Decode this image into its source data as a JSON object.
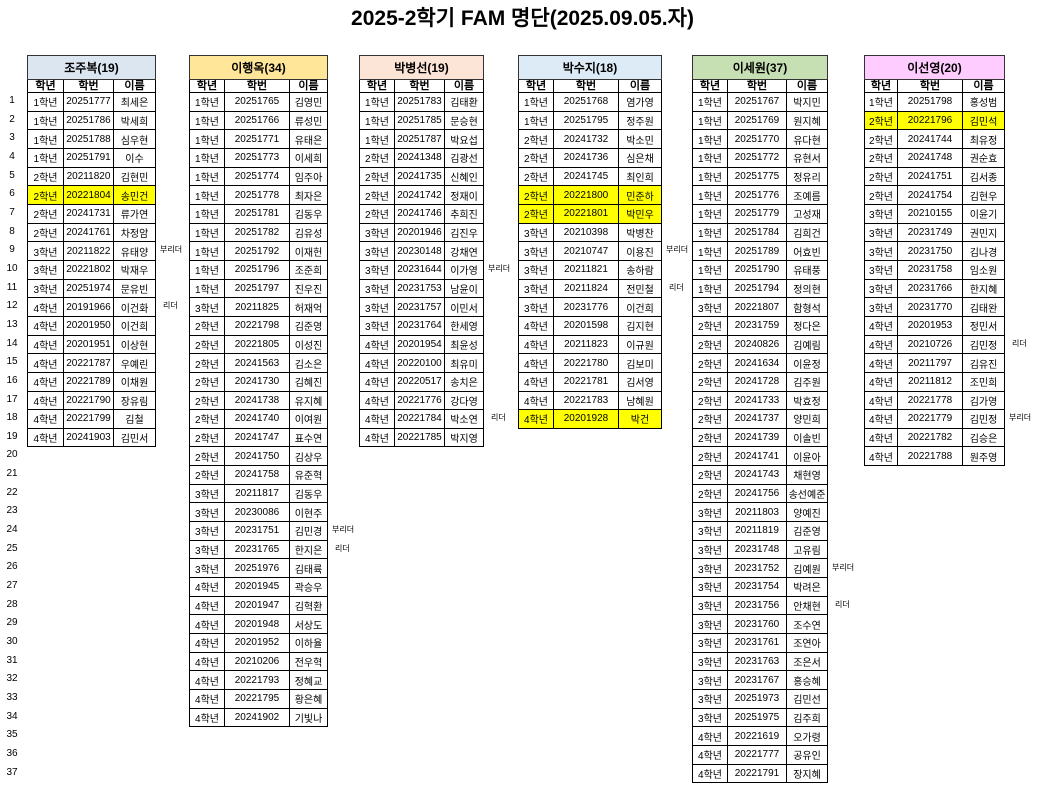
{
  "title": "2025-2학기 FAM 명단(2025.09.05.자)",
  "columns": [
    "학년",
    "학번",
    "이름"
  ],
  "row_numbers": [
    "1",
    "2",
    "3",
    "4",
    "5",
    "6",
    "7",
    "8",
    "9",
    "10",
    "11",
    "12",
    "13",
    "14",
    "15",
    "16",
    "17",
    "18",
    "19",
    "20",
    "21",
    "22",
    "23",
    "24",
    "25",
    "26",
    "27",
    "28",
    "29",
    "30",
    "31",
    "32",
    "33",
    "34",
    "35",
    "36",
    "37"
  ],
  "highlight_color": "#ffff00",
  "groups": [
    {
      "label": "조주복(19)",
      "color": "#dce6f1",
      "members": [
        [
          "1학년",
          "20251777",
          "최세은",
          "",
          false
        ],
        [
          "1학년",
          "20251786",
          "박세희",
          "",
          false
        ],
        [
          "1학년",
          "20251788",
          "심우현",
          "",
          false
        ],
        [
          "1학년",
          "20251791",
          "이수",
          "",
          false
        ],
        [
          "2학년",
          "20211820",
          "김현민",
          "",
          false
        ],
        [
          "2학년",
          "20221804",
          "송민건",
          "",
          true
        ],
        [
          "2학년",
          "20241731",
          "류가연",
          "",
          false
        ],
        [
          "2학년",
          "20241761",
          "차정암",
          "",
          false
        ],
        [
          "3학년",
          "20211822",
          "유태양",
          "부리더",
          false
        ],
        [
          "3학년",
          "20221802",
          "박재우",
          "",
          false
        ],
        [
          "3학년",
          "20251974",
          "문유빈",
          "",
          false
        ],
        [
          "4학년",
          "20191966",
          "이건화",
          "리더",
          false
        ],
        [
          "4학년",
          "20201950",
          "이건희",
          "",
          false
        ],
        [
          "4학년",
          "20201951",
          "이상현",
          "",
          false
        ],
        [
          "4학년",
          "20221787",
          "우예린",
          "",
          false
        ],
        [
          "4학년",
          "20221789",
          "이채원",
          "",
          false
        ],
        [
          "4학년",
          "20221790",
          "장유림",
          "",
          false
        ],
        [
          "4학년",
          "20221799",
          "김철",
          "",
          false
        ],
        [
          "4학년",
          "20241903",
          "김민서",
          "",
          false
        ]
      ]
    },
    {
      "label": "이행옥(34)",
      "color": "#ffe699",
      "members": [
        [
          "1학년",
          "20251765",
          "김영민",
          "",
          false
        ],
        [
          "1학년",
          "20251766",
          "류성민",
          "",
          false
        ],
        [
          "1학년",
          "20251771",
          "유태은",
          "",
          false
        ],
        [
          "1학년",
          "20251773",
          "이세희",
          "",
          false
        ],
        [
          "1학년",
          "20251774",
          "임주아",
          "",
          false
        ],
        [
          "1학년",
          "20251778",
          "최자은",
          "",
          false
        ],
        [
          "1학년",
          "20251781",
          "김동우",
          "",
          false
        ],
        [
          "1학년",
          "20251782",
          "김유성",
          "",
          false
        ],
        [
          "1학년",
          "20251792",
          "이재헌",
          "",
          false
        ],
        [
          "1학년",
          "20251796",
          "조준희",
          "",
          false
        ],
        [
          "1학년",
          "20251797",
          "진우진",
          "",
          false
        ],
        [
          "3학년",
          "20211825",
          "허재억",
          "",
          false
        ],
        [
          "2학년",
          "20221798",
          "김준영",
          "",
          false
        ],
        [
          "2학년",
          "20221805",
          "이성진",
          "",
          false
        ],
        [
          "2학년",
          "20241563",
          "김소은",
          "",
          false
        ],
        [
          "2학년",
          "20241730",
          "김혜진",
          "",
          false
        ],
        [
          "2학년",
          "20241738",
          "유지혜",
          "",
          false
        ],
        [
          "2학년",
          "20241740",
          "이여원",
          "",
          false
        ],
        [
          "2학년",
          "20241747",
          "표수연",
          "",
          false
        ],
        [
          "2학년",
          "20241750",
          "김상우",
          "",
          false
        ],
        [
          "2학년",
          "20241758",
          "유준혁",
          "",
          false
        ],
        [
          "3학년",
          "20211817",
          "김동우",
          "",
          false
        ],
        [
          "3학년",
          "20230086",
          "이현주",
          "",
          false
        ],
        [
          "3학년",
          "20231751",
          "김민경",
          "부리더",
          false
        ],
        [
          "3학년",
          "20231765",
          "한지은",
          "리더",
          false
        ],
        [
          "3학년",
          "20251976",
          "김태륙",
          "",
          false
        ],
        [
          "4학년",
          "20201945",
          "곽승우",
          "",
          false
        ],
        [
          "4학년",
          "20201947",
          "김혁환",
          "",
          false
        ],
        [
          "4학년",
          "20201948",
          "서상도",
          "",
          false
        ],
        [
          "4학년",
          "20201952",
          "이하율",
          "",
          false
        ],
        [
          "4학년",
          "20210206",
          "전우혁",
          "",
          false
        ],
        [
          "4학년",
          "20221793",
          "정혜교",
          "",
          false
        ],
        [
          "4학년",
          "20221795",
          "황은혜",
          "",
          false
        ],
        [
          "4학년",
          "20241902",
          "기빛나",
          "",
          false
        ]
      ]
    },
    {
      "label": "박병선(19)",
      "color": "#fce4d6",
      "members": [
        [
          "1학년",
          "20251783",
          "김태환",
          "",
          false
        ],
        [
          "1학년",
          "20251785",
          "문승현",
          "",
          false
        ],
        [
          "1학년",
          "20251787",
          "박요섭",
          "",
          false
        ],
        [
          "2학년",
          "20241348",
          "김광선",
          "",
          false
        ],
        [
          "2학년",
          "20241735",
          "신혜인",
          "",
          false
        ],
        [
          "2학년",
          "20241742",
          "정재이",
          "",
          false
        ],
        [
          "2학년",
          "20241746",
          "추희진",
          "",
          false
        ],
        [
          "3학년",
          "20201946",
          "김진우",
          "",
          false
        ],
        [
          "3학년",
          "20230148",
          "강채연",
          "",
          false
        ],
        [
          "3학년",
          "20231644",
          "이가영",
          "부리더",
          false
        ],
        [
          "3학년",
          "20231753",
          "남윤이",
          "",
          false
        ],
        [
          "3학년",
          "20231757",
          "이민서",
          "",
          false
        ],
        [
          "3학년",
          "20231764",
          "한세영",
          "",
          false
        ],
        [
          "4학년",
          "20201954",
          "최윤성",
          "",
          false
        ],
        [
          "4학년",
          "20220100",
          "최유미",
          "",
          false
        ],
        [
          "4학년",
          "20220517",
          "송치은",
          "",
          false
        ],
        [
          "4학년",
          "20221776",
          "강다영",
          "",
          false
        ],
        [
          "4학년",
          "20221784",
          "박소연",
          "리더",
          false
        ],
        [
          "4학년",
          "20221785",
          "박지영",
          "",
          false
        ]
      ]
    },
    {
      "label": "박수지(18)",
      "color": "#ddebf7",
      "members": [
        [
          "1학년",
          "20251768",
          "염가영",
          "",
          false
        ],
        [
          "1학년",
          "20251795",
          "정주원",
          "",
          false
        ],
        [
          "2학년",
          "20241732",
          "박소민",
          "",
          false
        ],
        [
          "2학년",
          "20241736",
          "심은채",
          "",
          false
        ],
        [
          "2학년",
          "20241745",
          "최인희",
          "",
          false
        ],
        [
          "2학년",
          "20221800",
          "민준하",
          "",
          true
        ],
        [
          "2학년",
          "20221801",
          "박민우",
          "",
          true
        ],
        [
          "3학년",
          "20210398",
          "박병찬",
          "",
          false
        ],
        [
          "3학년",
          "20210747",
          "이용진",
          "부리더",
          false
        ],
        [
          "3학년",
          "20211821",
          "송하람",
          "",
          false
        ],
        [
          "3학년",
          "20211824",
          "전민철",
          "리더",
          false
        ],
        [
          "3학년",
          "20231776",
          "이건희",
          "",
          false
        ],
        [
          "4학년",
          "20201598",
          "김지현",
          "",
          false
        ],
        [
          "4학년",
          "20211823",
          "이규원",
          "",
          false
        ],
        [
          "4학년",
          "20221780",
          "김보미",
          "",
          false
        ],
        [
          "4학년",
          "20221781",
          "김서영",
          "",
          false
        ],
        [
          "4학년",
          "20221783",
          "남혜원",
          "",
          false
        ],
        [
          "4학년",
          "20201928",
          "박건",
          "",
          true
        ]
      ]
    },
    {
      "label": "이세원(37)",
      "color": "#c6e0b4",
      "members": [
        [
          "1학년",
          "20251767",
          "박지민",
          "",
          false
        ],
        [
          "1학년",
          "20251769",
          "원지혜",
          "",
          false
        ],
        [
          "1학년",
          "20251770",
          "유다현",
          "",
          false
        ],
        [
          "1학년",
          "20251772",
          "유현서",
          "",
          false
        ],
        [
          "1학년",
          "20251775",
          "정유리",
          "",
          false
        ],
        [
          "1학년",
          "20251776",
          "조예름",
          "",
          false
        ],
        [
          "1학년",
          "20251779",
          "고성재",
          "",
          false
        ],
        [
          "1학년",
          "20251784",
          "김희건",
          "",
          false
        ],
        [
          "1학년",
          "20251789",
          "어효빈",
          "",
          false
        ],
        [
          "1학년",
          "20251790",
          "유태풍",
          "",
          false
        ],
        [
          "1학년",
          "20251794",
          "정의현",
          "",
          false
        ],
        [
          "3학년",
          "20221807",
          "함형석",
          "",
          false
        ],
        [
          "2학년",
          "20231759",
          "정다은",
          "",
          false
        ],
        [
          "2학년",
          "20240826",
          "김예림",
          "",
          false
        ],
        [
          "2학년",
          "20241634",
          "이윤정",
          "",
          false
        ],
        [
          "2학년",
          "20241728",
          "김주원",
          "",
          false
        ],
        [
          "2학년",
          "20241733",
          "박효정",
          "",
          false
        ],
        [
          "2학년",
          "20241737",
          "양민희",
          "",
          false
        ],
        [
          "2학년",
          "20241739",
          "이솔빈",
          "",
          false
        ],
        [
          "2학년",
          "20241741",
          "이윤아",
          "",
          false
        ],
        [
          "2학년",
          "20241743",
          "채현영",
          "",
          false
        ],
        [
          "2학년",
          "20241756",
          "송선예준",
          "",
          false
        ],
        [
          "3학년",
          "20211803",
          "양예진",
          "",
          false
        ],
        [
          "3학년",
          "20211819",
          "김준영",
          "",
          false
        ],
        [
          "3학년",
          "20231748",
          "고유림",
          "",
          false
        ],
        [
          "3학년",
          "20231752",
          "김예원",
          "부리더",
          false
        ],
        [
          "3학년",
          "20231754",
          "박려은",
          "",
          false
        ],
        [
          "3학년",
          "20231756",
          "안채현",
          "리더",
          false
        ],
        [
          "3학년",
          "20231760",
          "조수연",
          "",
          false
        ],
        [
          "3학년",
          "20231761",
          "조연아",
          "",
          false
        ],
        [
          "3학년",
          "20231763",
          "조은서",
          "",
          false
        ],
        [
          "3학년",
          "20231767",
          "홍승혜",
          "",
          false
        ],
        [
          "3학년",
          "20251973",
          "김민선",
          "",
          false
        ],
        [
          "3학년",
          "20251975",
          "김주희",
          "",
          false
        ],
        [
          "4학년",
          "20221619",
          "오가령",
          "",
          false
        ],
        [
          "4학년",
          "20221777",
          "공유인",
          "",
          false
        ],
        [
          "4학년",
          "20221791",
          "장지혜",
          "",
          false
        ]
      ]
    },
    {
      "label": "이선영(20)",
      "color": "#ffccff",
      "members": [
        [
          "1학년",
          "20251798",
          "홍성범",
          "",
          false
        ],
        [
          "2학년",
          "20221796",
          "김민석",
          "",
          true
        ],
        [
          "2학년",
          "20241744",
          "최유정",
          "",
          false
        ],
        [
          "2학년",
          "20241748",
          "권순효",
          "",
          false
        ],
        [
          "2학년",
          "20241751",
          "김서종",
          "",
          false
        ],
        [
          "2학년",
          "20241754",
          "김현우",
          "",
          false
        ],
        [
          "3학년",
          "20210155",
          "이윤기",
          "",
          false
        ],
        [
          "3학년",
          "20231749",
          "권민지",
          "",
          false
        ],
        [
          "3학년",
          "20231750",
          "김나경",
          "",
          false
        ],
        [
          "3학년",
          "20231758",
          "임소원",
          "",
          false
        ],
        [
          "3학년",
          "20231766",
          "한지혜",
          "",
          false
        ],
        [
          "3학년",
          "20231770",
          "김태완",
          "",
          false
        ],
        [
          "4학년",
          "20201953",
          "정민서",
          "",
          false
        ],
        [
          "4학년",
          "20210726",
          "김민정",
          "리더",
          false
        ],
        [
          "4학년",
          "20211797",
          "김유진",
          "",
          false
        ],
        [
          "4학년",
          "20211812",
          "조민희",
          "",
          false
        ],
        [
          "4학년",
          "20221778",
          "김가영",
          "",
          false
        ],
        [
          "4학년",
          "20221779",
          "김민정",
          "부리더",
          false
        ],
        [
          "4학년",
          "20221782",
          "김승은",
          "",
          false
        ],
        [
          "4학년",
          "20221788",
          "원주영",
          "",
          false
        ]
      ]
    }
  ]
}
